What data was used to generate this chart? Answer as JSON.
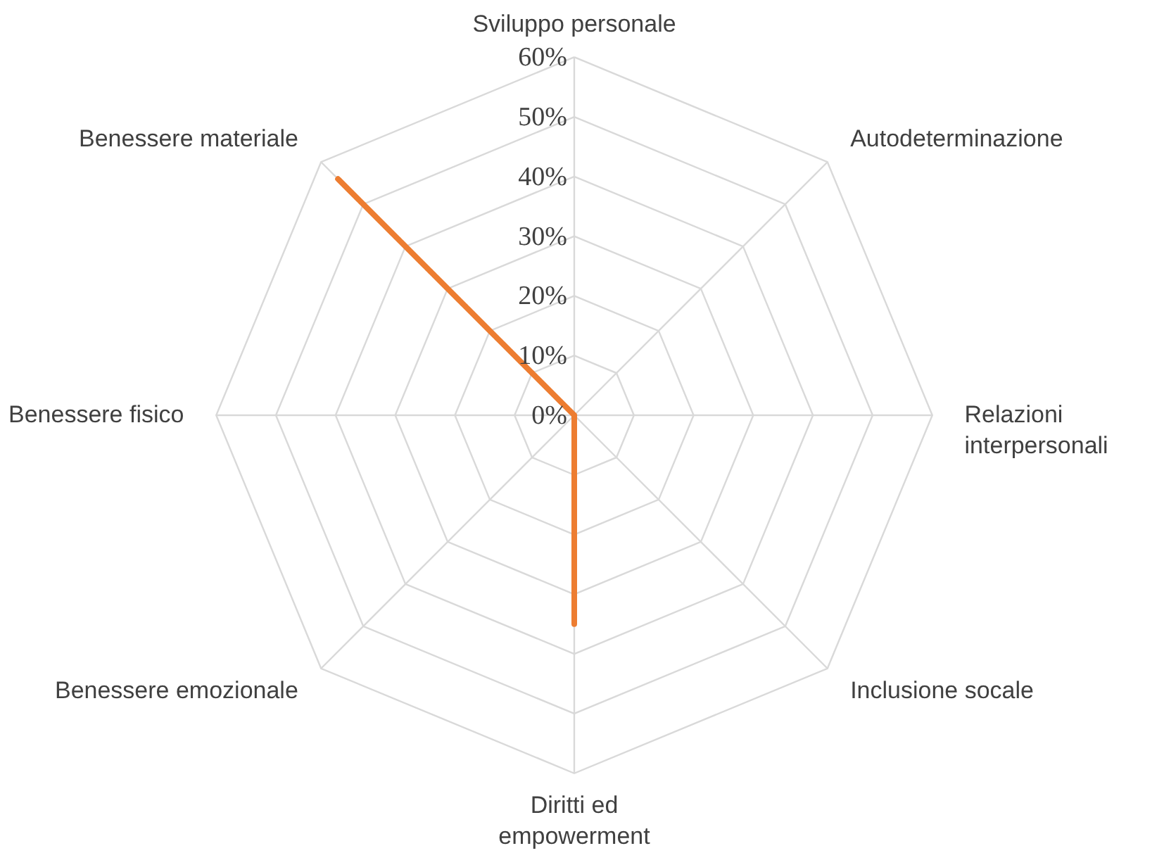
{
  "chart_data": {
    "type": "radar",
    "categories": [
      "Sviluppo personale",
      "Autodeterminazione",
      "Relazioni interpersonali",
      "Inclusione socale",
      "Diritti ed empowerment",
      "Benessere emozionale",
      "Benessere fisico",
      "Benessere materiale"
    ],
    "series": [
      {
        "color": "#ed7d31",
        "values": [
          0,
          0,
          0,
          0,
          35,
          0,
          0,
          56
        ]
      }
    ],
    "ylim": [
      0,
      60
    ],
    "yticks": [
      {
        "value": 0,
        "label": "0%"
      },
      {
        "value": 10,
        "label": "10%"
      },
      {
        "value": 20,
        "label": "20%"
      },
      {
        "value": 30,
        "label": "30%"
      },
      {
        "value": 40,
        "label": "40%"
      },
      {
        "value": 50,
        "label": "50%"
      },
      {
        "value": 60,
        "label": "60%"
      }
    ],
    "grid": true,
    "marker": "none",
    "line_style": "solid"
  }
}
